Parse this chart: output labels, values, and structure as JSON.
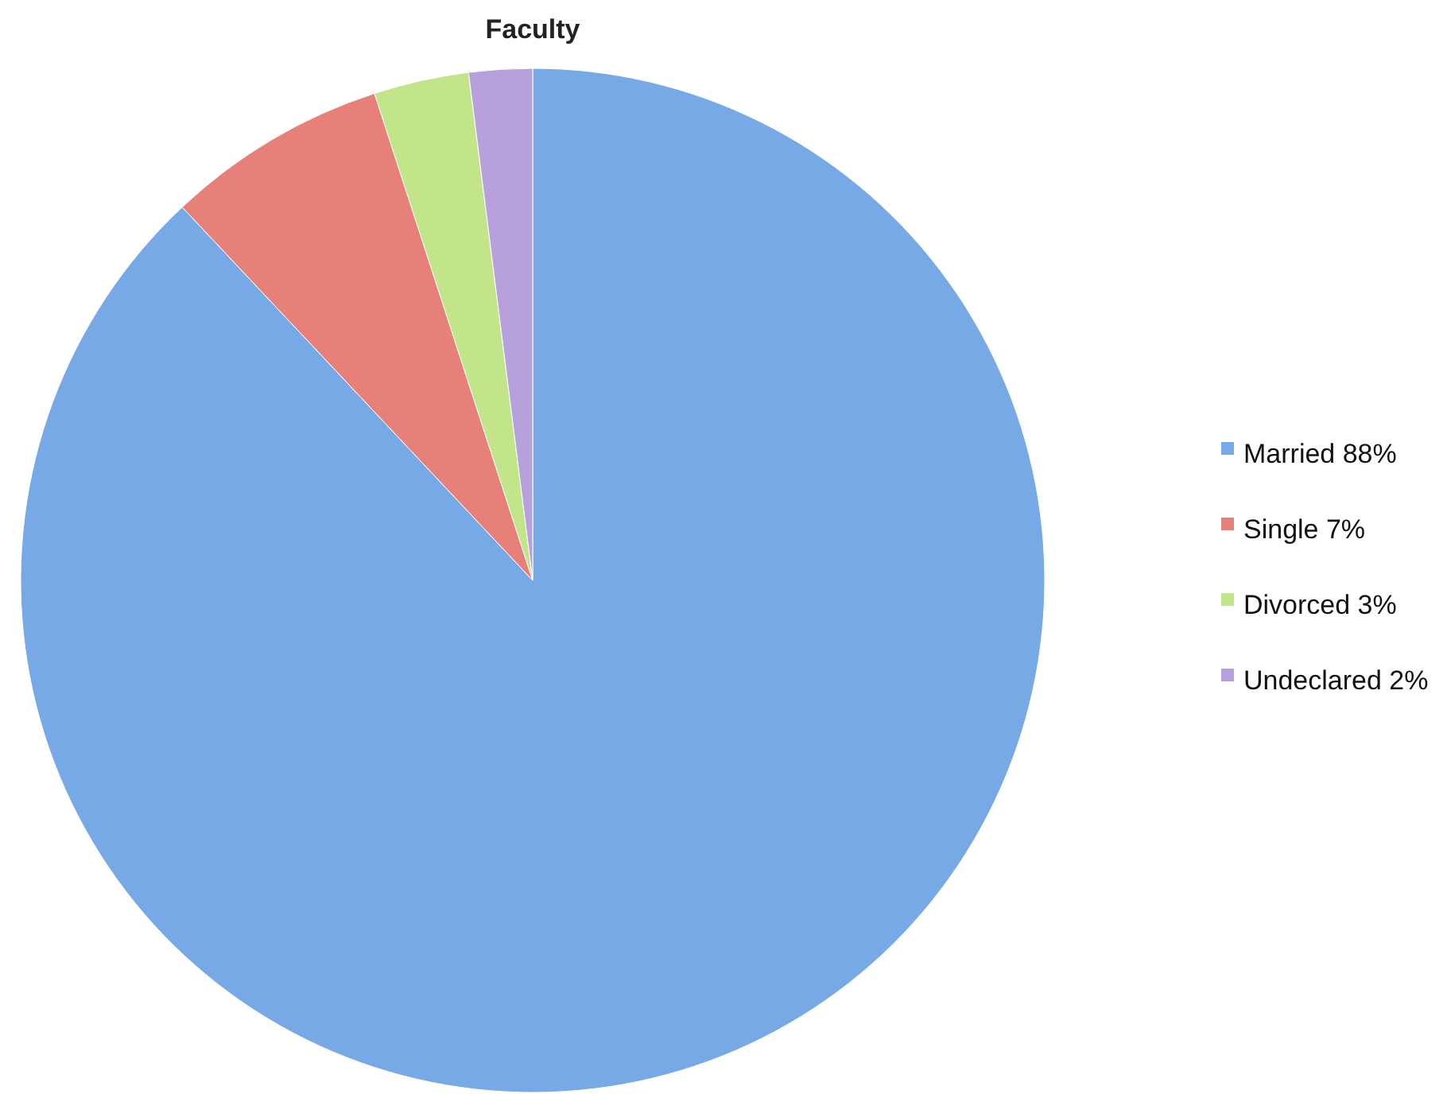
{
  "chart_data": {
    "type": "pie",
    "title": "Faculty",
    "categories": [
      "Married 88%",
      "Single 7%",
      "Divorced 3%",
      "Undeclared 2%"
    ],
    "values": [
      88,
      7,
      3,
      2
    ],
    "colors": [
      "#76a9e6",
      "#e8807a",
      "#c3e58a",
      "#b8a0dc"
    ],
    "legend": "right"
  }
}
